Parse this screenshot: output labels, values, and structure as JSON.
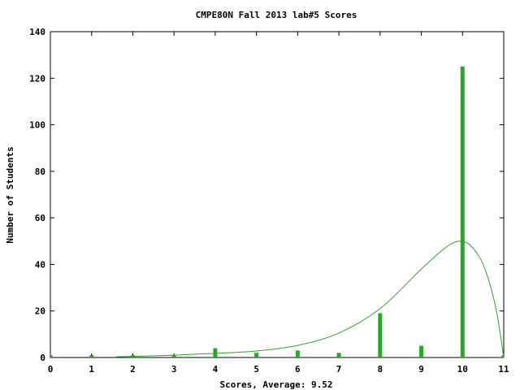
{
  "chart_data": {
    "type": "bar",
    "title": "CMPE80N Fall 2013 lab#5 Scores",
    "xlabel": "Scores, Average: 9.52",
    "ylabel": "Number of Students",
    "xlim": [
      0,
      11
    ],
    "ylim": [
      0,
      140
    ],
    "x_ticks": [
      0,
      1,
      2,
      3,
      4,
      5,
      6,
      7,
      8,
      9,
      10,
      11
    ],
    "y_ticks": [
      0,
      20,
      40,
      60,
      80,
      100,
      120,
      140
    ],
    "grid": false,
    "bar_color": "#22aa22",
    "curve_color": "#22aa22",
    "series": [
      {
        "type": "bar",
        "x": [
          0,
          1,
          2,
          3,
          4,
          5,
          6,
          7,
          8,
          9,
          10,
          11
        ],
        "values": [
          1,
          1,
          1,
          1,
          4,
          2,
          3,
          2,
          19,
          5,
          125,
          1
        ]
      },
      {
        "type": "line",
        "x": [
          1.6,
          2,
          3,
          4,
          5,
          6,
          7,
          8,
          9,
          9.5,
          9.8,
          10,
          10.2,
          10.5,
          10.8,
          11
        ],
        "values": [
          0.3,
          0.5,
          1,
          1.8,
          2.8,
          5.2,
          10.5,
          21,
          38,
          46,
          49.5,
          49.8,
          48,
          40,
          22,
          0
        ]
      }
    ]
  }
}
